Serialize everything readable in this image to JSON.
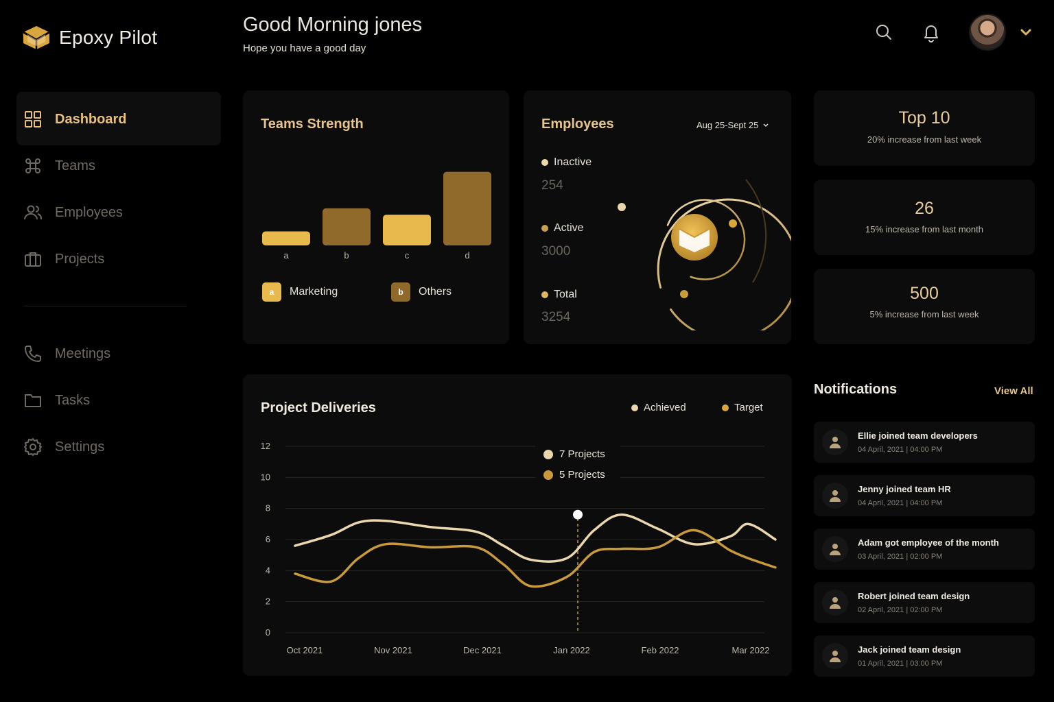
{
  "brand": {
    "name": "Epoxy Pilot"
  },
  "header": {
    "greeting": "Good Morning jones",
    "subtitle": "Hope you have a good day",
    "icons": [
      "search-icon",
      "bell-icon",
      "chevron-down-icon"
    ]
  },
  "sidebar": {
    "items": [
      {
        "label": "Dashboard",
        "icon": "grid-icon",
        "active": true
      },
      {
        "label": "Teams",
        "icon": "command-icon",
        "active": false
      },
      {
        "label": "Employees",
        "icon": "users-icon",
        "active": false
      },
      {
        "label": "Projects",
        "icon": "briefcase-icon",
        "active": false
      },
      {
        "label": "Meetings",
        "icon": "phone-icon",
        "active": false
      },
      {
        "label": "Tasks",
        "icon": "folder-icon",
        "active": false
      },
      {
        "label": "Settings",
        "icon": "gear-icon",
        "active": false
      }
    ]
  },
  "teams_strength": {
    "title": "Teams Strength",
    "legend": [
      {
        "letter": "a",
        "label": "Marketing",
        "color": "#e8b94c"
      },
      {
        "letter": "b",
        "label": "Others",
        "color": "#8f6a2a"
      }
    ]
  },
  "employees": {
    "title": "Employees",
    "date_range": "Aug 25-Sept 25",
    "stats": [
      {
        "label": "Inactive",
        "value": "254",
        "color": "#f0d9a8"
      },
      {
        "label": "Active",
        "value": "3000",
        "color": "#c9a24e"
      },
      {
        "label": "Total",
        "value": "3254",
        "color": "#e0b660"
      }
    ]
  },
  "stat_cards": [
    {
      "value": "Top 10",
      "caption": "20% increase from last week"
    },
    {
      "value": "26",
      "caption": "15% increase from last month"
    },
    {
      "value": "500",
      "caption": "5% increase from last week"
    }
  ],
  "notifications": {
    "title": "Notifications",
    "view_all": "View All",
    "items": [
      {
        "text": "Ellie joined team developers",
        "time": "04 April, 2021 | 04:00 PM"
      },
      {
        "text": "Jenny joined team HR",
        "time": "04 April, 2021 | 04:00 PM"
      },
      {
        "text": "Adam got employee of the month",
        "time": "03 April, 2021 | 02:00 PM"
      },
      {
        "text": "Robert joined team design",
        "time": "02 April, 2021 | 02:00 PM"
      },
      {
        "text": "Jack joined team design",
        "time": "01 April, 2021 | 03:00 PM"
      }
    ]
  },
  "project_deliveries": {
    "title": "Project Deliveries",
    "legend": [
      {
        "label": "Achieved",
        "color": "#ead7ad"
      },
      {
        "label": "Target",
        "color": "#d9a63e"
      }
    ],
    "tooltip": [
      {
        "label": "7 Projects",
        "color": "#ead7ad"
      },
      {
        "label": "5 Projects",
        "color": "#c99a3a"
      }
    ]
  },
  "chart_data": [
    {
      "type": "bar",
      "categories": [
        "a",
        "b",
        "c",
        "d"
      ],
      "values": [
        2.2,
        5.8,
        4.8,
        11.5
      ],
      "colors": [
        "#e8b94c",
        "#8f6a2a",
        "#e8b94c",
        "#8f6a2a"
      ],
      "ylim": [
        0,
        12
      ],
      "grid": false
    },
    {
      "type": "line",
      "categories": [
        "Oct 2021",
        "Nov 2021",
        "Dec 2021",
        "Jan 2022",
        "Feb 2022",
        "Mar 2022"
      ],
      "yticks": [
        "0",
        "2",
        "4",
        "6",
        "8",
        "10",
        "12"
      ],
      "ylim": [
        0,
        12
      ],
      "grid": true,
      "legend": "top-right",
      "x": [
        0,
        0.4,
        0.7,
        1.0,
        1.5,
        2.0,
        2.3,
        2.6,
        3.0,
        3.3,
        3.6,
        4.0,
        4.4,
        4.8,
        5.0,
        5.3
      ],
      "series": [
        {
          "name": "Achieved",
          "color": "#ead7ad",
          "values": [
            5.6,
            6.3,
            7.1,
            7.2,
            6.8,
            6.5,
            5.6,
            4.7,
            4.8,
            6.6,
            7.6,
            6.7,
            5.7,
            6.2,
            7.0,
            6.0
          ]
        },
        {
          "name": "Target",
          "color": "#c99a3a",
          "values": [
            3.8,
            3.3,
            4.8,
            5.7,
            5.5,
            5.5,
            4.4,
            3.0,
            3.6,
            5.2,
            5.4,
            5.5,
            6.6,
            5.3,
            4.8,
            4.2
          ]
        }
      ],
      "highlight_category": "Jan 2022"
    }
  ]
}
